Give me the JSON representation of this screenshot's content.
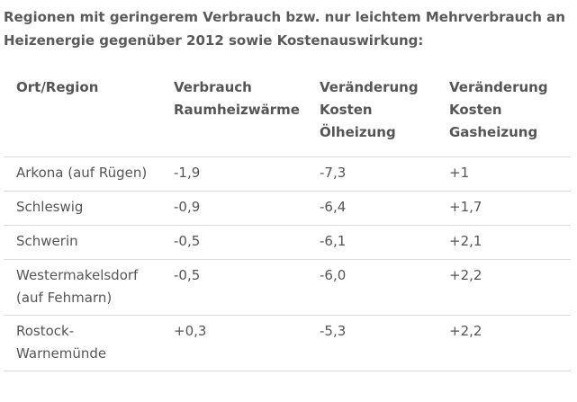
{
  "caption": {
    "line1": "Regionen mit geringerem Verbrauch bzw. nur leichtem Mehrverbrauch an",
    "line2": "Heizenergie gegenüber 2012 sowie Kostenauswirkung:"
  },
  "table": {
    "headers": [
      [
        "Ort/Region"
      ],
      [
        "Verbrauch",
        "Raumheizwärme"
      ],
      [
        "Veränderung",
        "Kosten",
        "Ölheizung"
      ],
      [
        "Veränderung",
        "Kosten",
        "Gasheizung"
      ]
    ],
    "rows": [
      {
        "region": [
          "Arkona (auf Rügen)"
        ],
        "verbrauch": "-1,9",
        "oel": "-7,3",
        "gas": "+1"
      },
      {
        "region": [
          "Schleswig"
        ],
        "verbrauch": "-0,9",
        "oel": "-6,4",
        "gas": "+1,7"
      },
      {
        "region": [
          "Schwerin"
        ],
        "verbrauch": "-0,5",
        "oel": "-6,1",
        "gas": "+2,1"
      },
      {
        "region": [
          "Westermakelsdorf",
          "(auf Fehmarn)"
        ],
        "verbrauch": "-0,5",
        "oel": "-6,0",
        "gas": "+2,2"
      },
      {
        "region": [
          "Rostock-",
          "Warnemünde"
        ],
        "verbrauch": "+0,3",
        "oel": "-5,3",
        "gas": "+2,2"
      }
    ]
  }
}
